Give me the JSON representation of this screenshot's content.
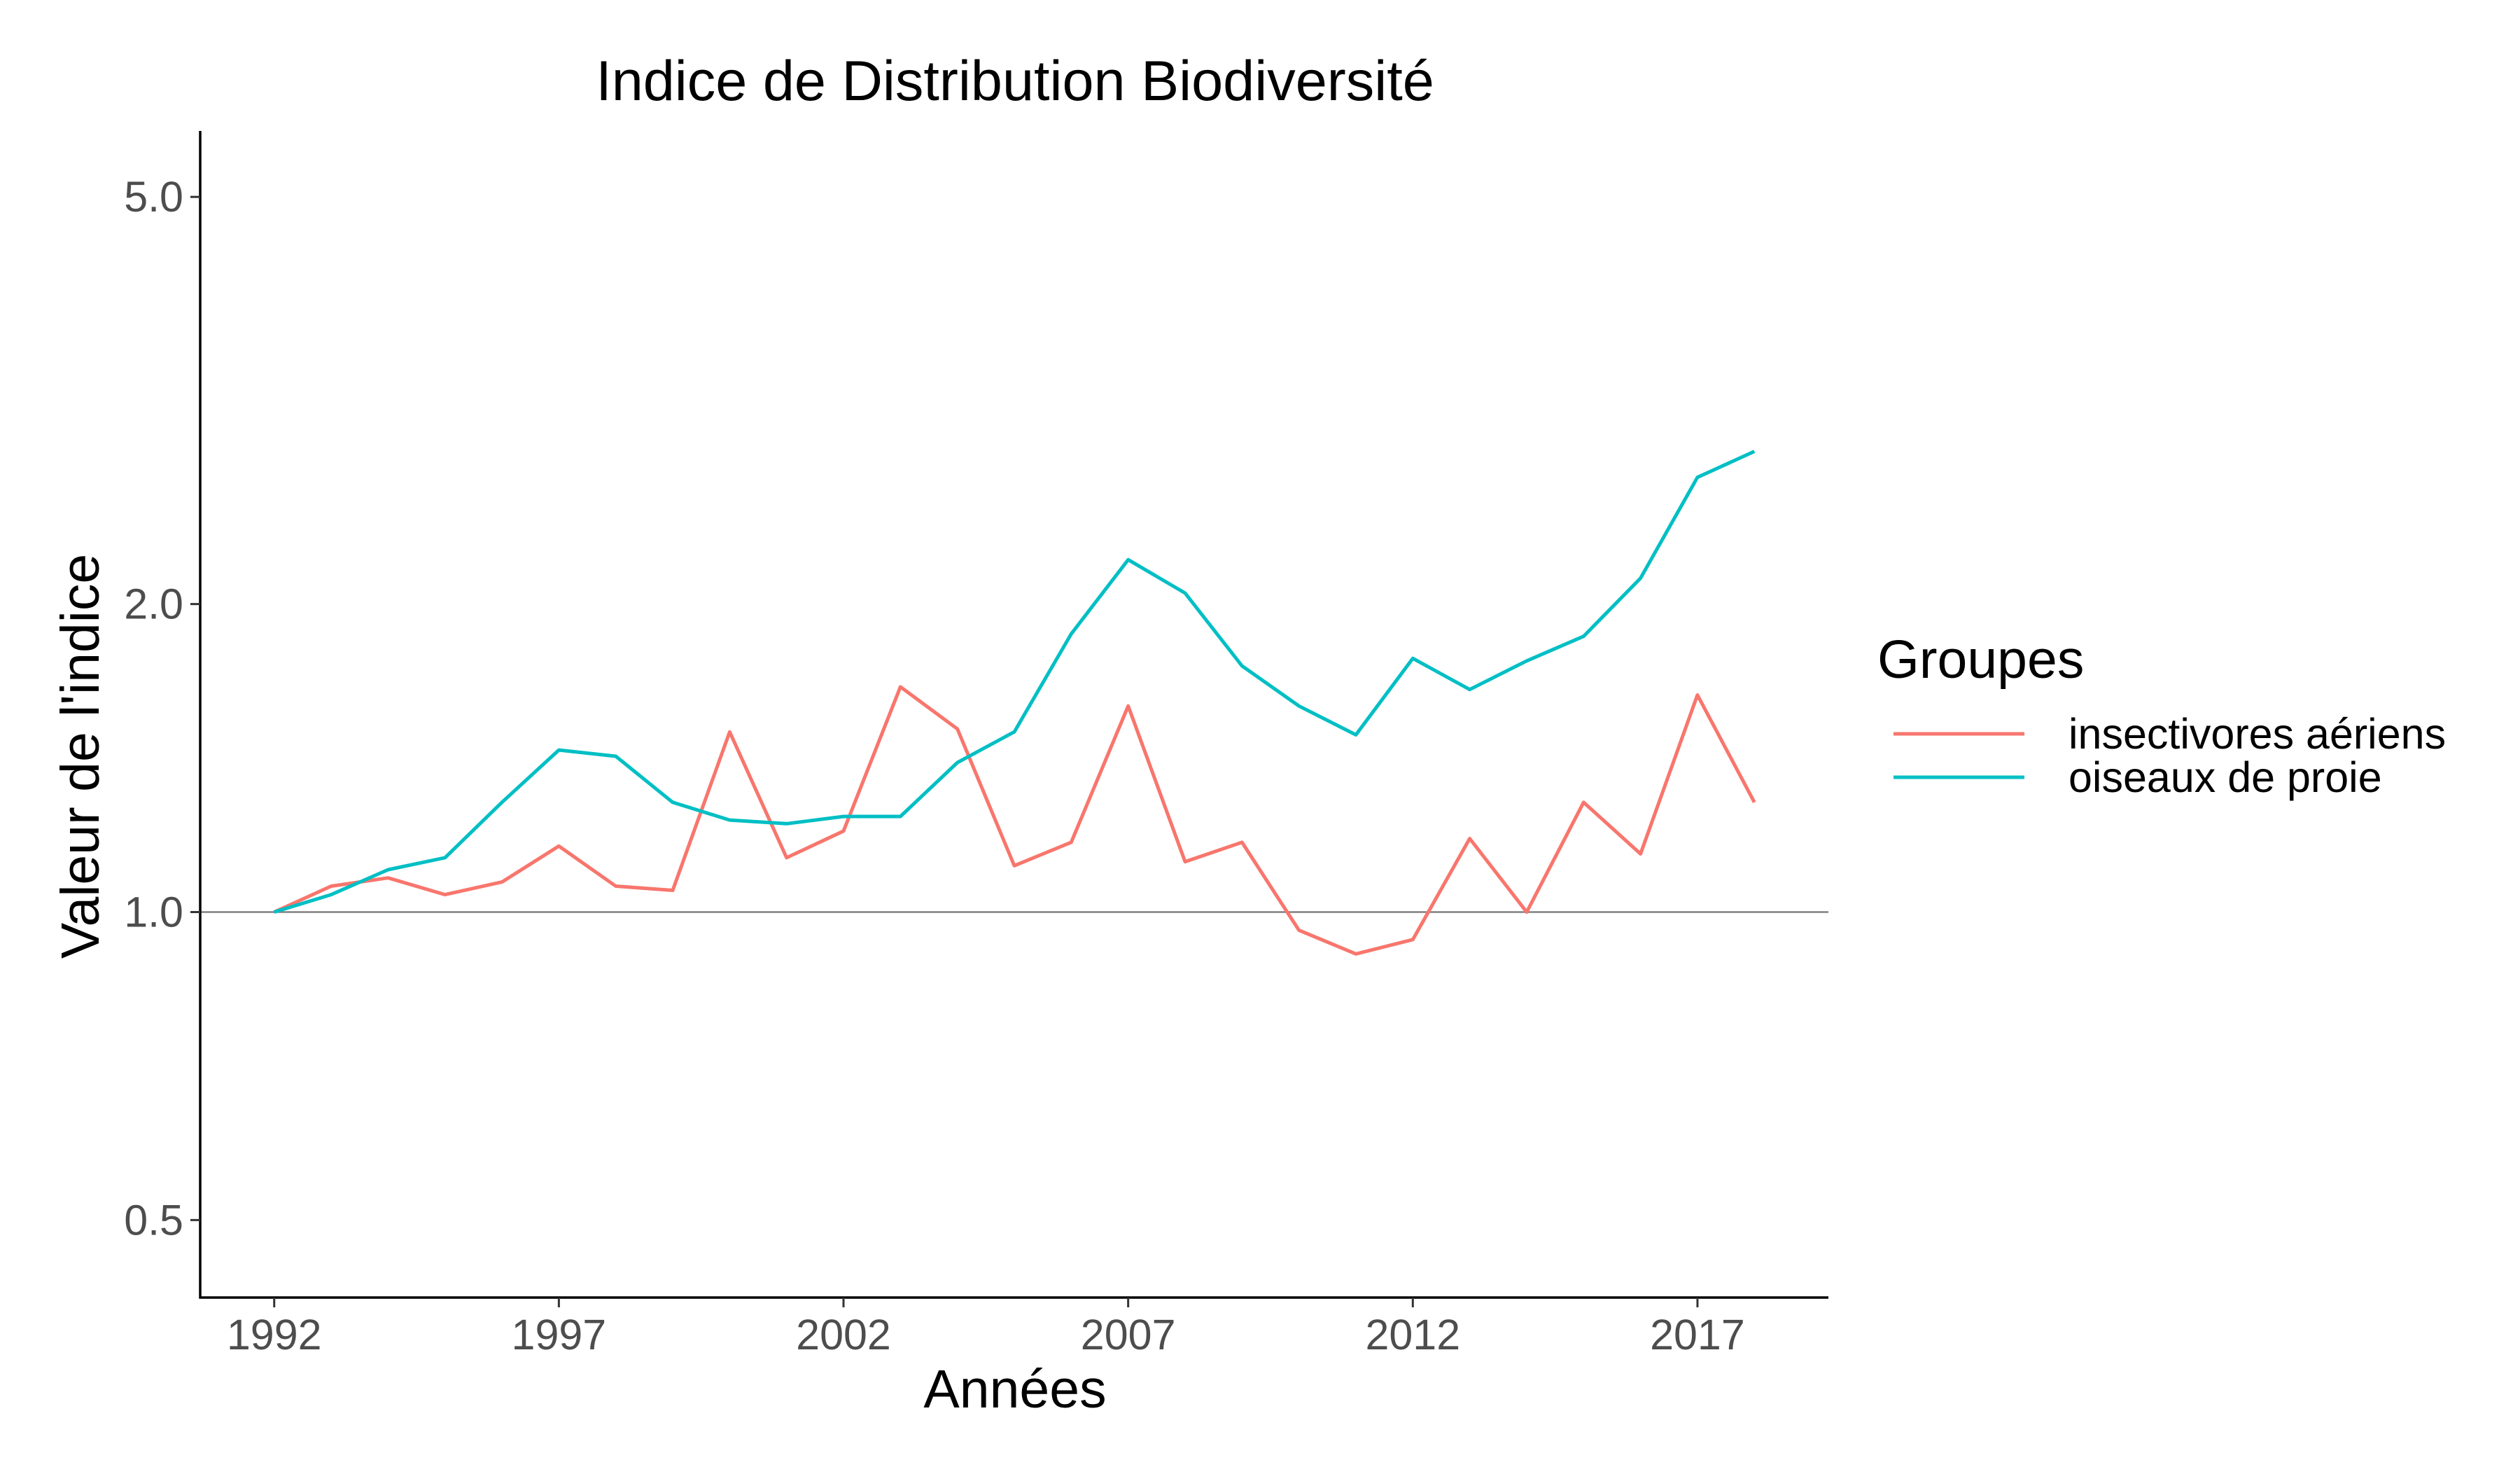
{
  "chart_data": {
    "type": "line",
    "title": "Indice de Distribution Biodiversité",
    "xlabel": "Années",
    "ylabel": "Valeur de l'indice",
    "y_scale": "log",
    "ylim": [
      0.42,
      5.8
    ],
    "xlim": [
      1990.7,
      2019.3
    ],
    "x_ticks": [
      1992,
      1997,
      2002,
      2007,
      2012,
      2017
    ],
    "x_tick_labels": [
      "1992",
      "1997",
      "2002",
      "2007",
      "2012",
      "2017"
    ],
    "y_ticks": [
      0.5,
      1.0,
      2.0,
      5.0
    ],
    "y_tick_labels": [
      "0.5",
      "1.0",
      "2.0",
      "5.0"
    ],
    "reference_line": 1.0,
    "grid": false,
    "legend": {
      "title": "Groupes",
      "position": "right"
    },
    "x": [
      1992,
      1993,
      1994,
      1995,
      1996,
      1997,
      1998,
      1999,
      2000,
      2001,
      2002,
      2003,
      2004,
      2005,
      2006,
      2007,
      2008,
      2009,
      2010,
      2011,
      2012,
      2013,
      2014,
      2015,
      2016,
      2017,
      2018
    ],
    "series": [
      {
        "name": "insectivores aériens",
        "color": "#F8766D",
        "values": [
          1.0,
          1.06,
          1.08,
          1.04,
          1.07,
          1.16,
          1.06,
          1.05,
          1.5,
          1.13,
          1.2,
          1.66,
          1.51,
          1.11,
          1.17,
          1.59,
          1.12,
          1.17,
          0.96,
          0.91,
          0.94,
          1.18,
          1.0,
          1.28,
          1.14,
          1.63,
          1.28
        ]
      },
      {
        "name": "oiseaux de proie",
        "color": "#00BFC4",
        "values": [
          1.0,
          1.04,
          1.1,
          1.13,
          1.28,
          1.44,
          1.42,
          1.28,
          1.23,
          1.22,
          1.24,
          1.24,
          1.4,
          1.5,
          1.87,
          2.21,
          2.05,
          1.74,
          1.59,
          1.49,
          1.77,
          1.65,
          1.76,
          1.86,
          2.12,
          2.66,
          2.82
        ]
      }
    ]
  }
}
